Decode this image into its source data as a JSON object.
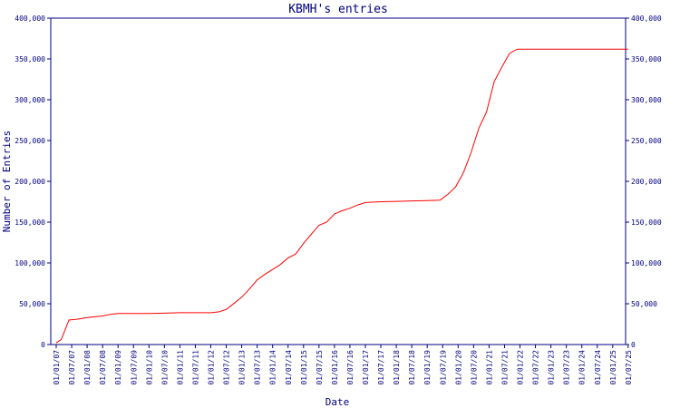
{
  "chart_data": {
    "type": "line",
    "title": "KBMH's entries",
    "xlabel": "Date",
    "ylabel": "Number of Entries",
    "ylim": [
      0,
      400000
    ],
    "y_ticks": [
      "0",
      "50,000",
      "100,000",
      "150,000",
      "200,000",
      "250,000",
      "300,000",
      "350,000",
      "400,000"
    ],
    "x_ticks": [
      "01/01/07",
      "01/07/07",
      "01/01/08",
      "01/07/08",
      "01/01/09",
      "01/07/09",
      "01/01/10",
      "01/07/10",
      "01/01/11",
      "01/07/11",
      "01/01/12",
      "01/07/12",
      "01/01/13",
      "01/07/13",
      "01/01/14",
      "01/07/14",
      "01/01/15",
      "01/07/15",
      "01/01/16",
      "01/07/16",
      "01/01/17",
      "01/07/17",
      "01/01/18",
      "01/07/18",
      "01/01/19",
      "01/07/19",
      "01/01/20",
      "01/07/20",
      "01/01/21",
      "01/07/21",
      "01/01/22",
      "01/07/22",
      "01/01/23",
      "01/07/23",
      "01/01/24",
      "01/07/24",
      "01/01/25",
      "01/07/25"
    ],
    "grid": false,
    "colors": {
      "line": "#ff0000",
      "axis": "#000080",
      "text": "#000080"
    },
    "series": [
      {
        "x": [
          "2007-01-01",
          "2007-03-01",
          "2007-05-01",
          "2007-06-01",
          "2007-09-01",
          "2007-11-01",
          "2008-01-01",
          "2008-04-01",
          "2008-07-01",
          "2008-10-01",
          "2009-01-01",
          "2010-01-01",
          "2010-07-01",
          "2011-01-01",
          "2011-07-01",
          "2012-01-01",
          "2012-04-01",
          "2012-07-01",
          "2012-09-01",
          "2013-01-01",
          "2013-04-01",
          "2013-07-01",
          "2013-10-01",
          "2014-01-01",
          "2014-04-01",
          "2014-07-01",
          "2014-10-01",
          "2015-01-01",
          "2015-04-01",
          "2015-07-01",
          "2015-10-01",
          "2016-01-01",
          "2016-04-01",
          "2016-07-01",
          "2016-10-01",
          "2017-01-01",
          "2017-07-01",
          "2018-01-01",
          "2018-07-01",
          "2019-01-01",
          "2019-06-01",
          "2019-09-01",
          "2019-12-01",
          "2020-03-01",
          "2020-06-01",
          "2020-09-01",
          "2020-12-01",
          "2021-03-01",
          "2021-06-01",
          "2021-09-01",
          "2021-12-01",
          "2022-01-01",
          "2022-07-01",
          "2023-01-01",
          "2024-01-01",
          "2025-01-01",
          "2025-07-01"
        ],
        "y": [
          2000,
          6000,
          22000,
          30000,
          31000,
          32000,
          33000,
          34000,
          35000,
          37000,
          38000,
          38000,
          38500,
          39000,
          39000,
          39000,
          40000,
          43000,
          48000,
          58000,
          68000,
          79000,
          86000,
          92000,
          98000,
          106000,
          111000,
          124000,
          135000,
          146000,
          150000,
          160000,
          164000,
          167000,
          171000,
          174000,
          175000,
          175500,
          176000,
          176500,
          177000,
          184000,
          193000,
          210000,
          235000,
          265000,
          285000,
          322000,
          340000,
          357000,
          362000,
          362000,
          362000,
          362000,
          362000,
          362000,
          362000
        ]
      }
    ]
  }
}
